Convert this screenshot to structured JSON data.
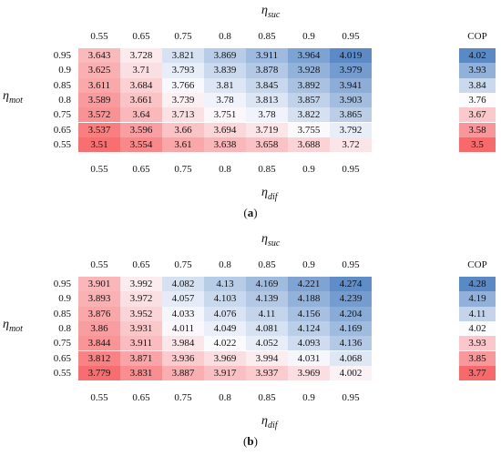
{
  "chart_data": [
    {
      "type": "heatmap",
      "panel_label": "a",
      "top_axis_label": "η_suc",
      "bottom_axis_label": "η_dif",
      "row_axis_label": "η_mot",
      "top_ticks": [
        "0.55",
        "0.65",
        "0.75",
        "0.8",
        "0.85",
        "0.9",
        "0.95"
      ],
      "bottom_ticks": [
        "0.55",
        "0.65",
        "0.75",
        "0.8",
        "0.85",
        "0.9",
        "0.95"
      ],
      "row_ticks": [
        "0.95",
        "0.9",
        "0.85",
        "0.8",
        "0.75",
        "0.65",
        "0.55"
      ],
      "cop_header": "COP",
      "values": [
        [
          "3.643",
          "3.728",
          "3.821",
          "3.869",
          "3.911",
          "3.964",
          "4.019"
        ],
        [
          "3.625",
          "3.71",
          "3.793",
          "3.839",
          "3.878",
          "3.928",
          "3.979"
        ],
        [
          "3.611",
          "3.684",
          "3.766",
          "3.81",
          "3.845",
          "3.892",
          "3.941"
        ],
        [
          "3.589",
          "3.661",
          "3.739",
          "3.78",
          "3.813",
          "3.857",
          "3.903"
        ],
        [
          "3.572",
          "3.64",
          "3.713",
          "3.751",
          "3.78",
          "3.822",
          "3.865"
        ],
        [
          "3.537",
          "3.596",
          "3.66",
          "3.694",
          "3.719",
          "3.755",
          "3.792"
        ],
        [
          "3.51",
          "3.554",
          "3.61",
          "3.638",
          "3.658",
          "3.688",
          "3.72"
        ]
      ],
      "cop": [
        "4.02",
        "3.93",
        "3.84",
        "3.76",
        "3.67",
        "3.58",
        "3.5"
      ],
      "color_min": 3.5,
      "color_mid": 3.76,
      "color_max": 4.02
    },
    {
      "type": "heatmap",
      "panel_label": "b",
      "top_axis_label": "η_suc",
      "bottom_axis_label": "η_dif",
      "row_axis_label": "η_mot",
      "top_ticks": [
        "0.55",
        "0.65",
        "0.75",
        "0.8",
        "0.85",
        "0.9",
        "0.95"
      ],
      "bottom_ticks": [
        "0.55",
        "0.65",
        "0.75",
        "0.8",
        "0.85",
        "0.9",
        "0.95"
      ],
      "row_ticks": [
        "0.95",
        "0.9",
        "0.85",
        "0.8",
        "0.75",
        "0.65",
        "0.55"
      ],
      "cop_header": "COP",
      "values": [
        [
          "3.901",
          "3.992",
          "4.082",
          "4.13",
          "4.169",
          "4.221",
          "4.274"
        ],
        [
          "3.893",
          "3.972",
          "4.057",
          "4.103",
          "4.139",
          "4.188",
          "4.239"
        ],
        [
          "3.876",
          "3.952",
          "4.033",
          "4.076",
          "4.11",
          "4.156",
          "4.204"
        ],
        [
          "3.86",
          "3.931",
          "4.011",
          "4.049",
          "4.081",
          "4.124",
          "4.169"
        ],
        [
          "3.844",
          "3.911",
          "3.984",
          "4.022",
          "4.052",
          "4.093",
          "4.136"
        ],
        [
          "3.812",
          "3.871",
          "3.936",
          "3.969",
          "3.994",
          "4.031",
          "4.068"
        ],
        [
          "3.779",
          "3.831",
          "3.887",
          "3.917",
          "3.937",
          "3.969",
          "4.002"
        ]
      ],
      "cop": [
        "4.28",
        "4.19",
        "4.11",
        "4.02",
        "3.93",
        "3.85",
        "3.77"
      ],
      "color_min": 3.77,
      "color_mid": 4.02,
      "color_max": 4.28
    }
  ],
  "colors": {
    "low": "#f8696b",
    "mid": "#fcfcff",
    "high": "#5a8ac6"
  }
}
